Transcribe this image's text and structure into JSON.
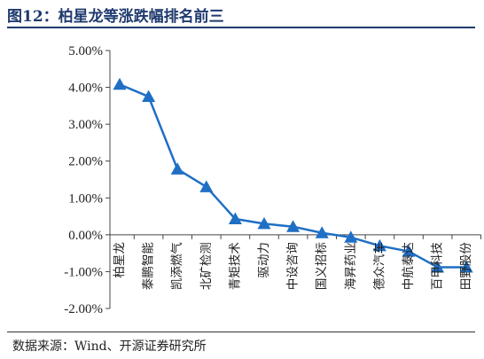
{
  "figure": {
    "title": "图12：柏星龙等涨跌幅排名前三",
    "source": "数据来源：Wind、开源证券研究所"
  },
  "chart_data": {
    "type": "line",
    "categories": [
      "柏星龙",
      "泰鹏智能",
      "凯添燃气",
      "北矿检测",
      "青矩技术",
      "驱动力",
      "中设咨询",
      "国义招标",
      "海昇药业",
      "德众汽车",
      "中航泰达",
      "百甲科技",
      "田野股份"
    ],
    "values": [
      4.08,
      3.75,
      1.78,
      1.3,
      0.43,
      0.3,
      0.22,
      0.05,
      -0.07,
      -0.3,
      -0.45,
      -0.88,
      -0.88
    ],
    "y_ticks": [
      "5.00%",
      "4.00%",
      "3.00%",
      "2.00%",
      "1.00%",
      "0.00%",
      "-1.00%",
      "-2.00%"
    ],
    "ylim": [
      -2,
      5
    ],
    "xlabel": "",
    "ylabel": "",
    "marker": "triangle",
    "color": "#1f6fc5",
    "grid": false,
    "legend": "none"
  }
}
